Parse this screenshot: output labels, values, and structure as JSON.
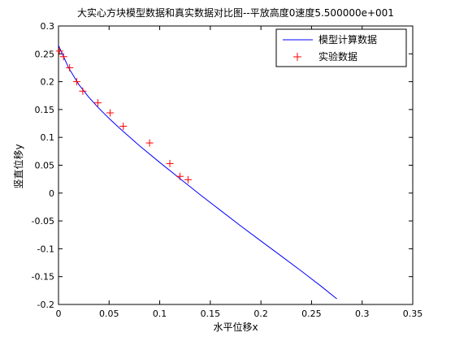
{
  "chart_data": {
    "type": "line",
    "title": "大实心方块模型数据和真实数据对比图--平放高度0速度5.500000e+001",
    "xlabel": "水平位移x",
    "ylabel": "竖直位移y",
    "xlim": [
      0,
      0.35
    ],
    "ylim": [
      -0.2,
      0.3
    ],
    "xticks": [
      0,
      0.05,
      0.1,
      0.15,
      0.2,
      0.25,
      0.3,
      0.35
    ],
    "xtick_labels": [
      "0",
      "0.05",
      "0.1",
      "0.15",
      "0.2",
      "0.25",
      "0.3",
      "0.35"
    ],
    "yticks": [
      -0.2,
      -0.15,
      -0.1,
      -0.05,
      0,
      0.05,
      0.1,
      0.15,
      0.2,
      0.25,
      0.3
    ],
    "ytick_labels": [
      "-0.2",
      "-0.15",
      "-0.1",
      "-0.05",
      "0",
      "0.05",
      "0.1",
      "0.15",
      "0.2",
      "0.25",
      "0.3"
    ],
    "grid": false,
    "legend_position": "top-right",
    "series": [
      {
        "name": "模型计算数据",
        "kind": "line",
        "color": "#0000ff",
        "x": [
          0,
          0.01,
          0.02,
          0.03,
          0.04,
          0.05,
          0.06,
          0.08,
          0.1,
          0.12,
          0.14,
          0.16,
          0.18,
          0.2,
          0.22,
          0.24,
          0.26,
          0.275
        ],
        "y": [
          0.265,
          0.225,
          0.195,
          0.172,
          0.152,
          0.134,
          0.117,
          0.085,
          0.055,
          0.026,
          -0.003,
          -0.031,
          -0.059,
          -0.086,
          -0.113,
          -0.14,
          -0.168,
          -0.19
        ]
      },
      {
        "name": "实验数据",
        "kind": "marker",
        "marker": "+",
        "color": "#ff0000",
        "x": [
          0.001,
          0.005,
          0.011,
          0.018,
          0.024,
          0.039,
          0.051,
          0.064,
          0.09,
          0.11,
          0.12,
          0.128
        ],
        "y": [
          0.255,
          0.245,
          0.225,
          0.2,
          0.183,
          0.162,
          0.144,
          0.12,
          0.09,
          0.053,
          0.03,
          0.024
        ]
      }
    ]
  }
}
